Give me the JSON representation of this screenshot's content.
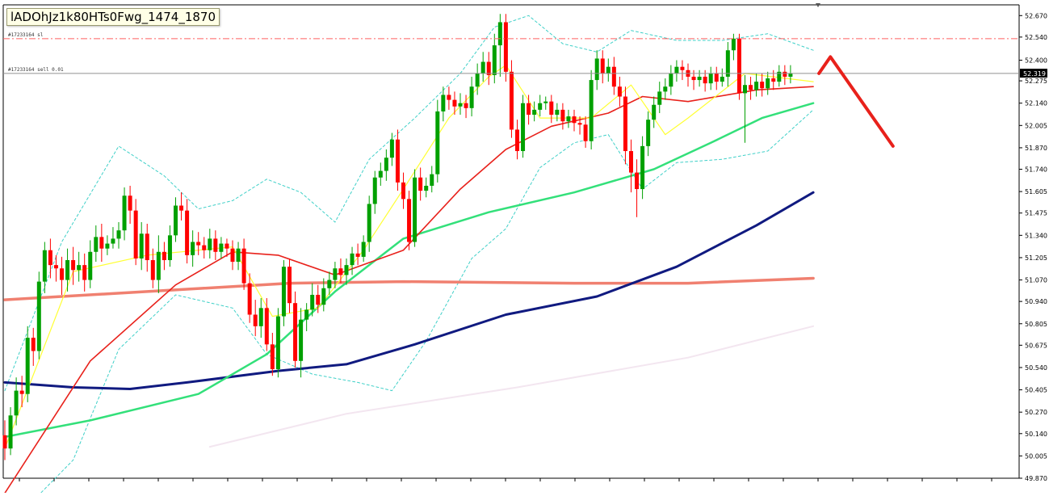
{
  "caption": "lADOhJz1k80HTs0Fwg_1474_1870",
  "orders": {
    "sl_label": "#17233164 sl",
    "sell_label": "#17233164 sell 0.01",
    "sl_price": 52.53,
    "sell_price": 52.32
  },
  "colors": {
    "bull": "#00a000",
    "bear": "#ff0000",
    "sma_yellow": "#ffff33",
    "ma_red": "#e8211b",
    "ma_green": "#33e07a",
    "ma_navy": "#101a80",
    "ma_salmon": "#f08070",
    "bb_cyan": "#3fd0c8",
    "sl_line": "#ff6060",
    "forecast": "#e8211b"
  },
  "chart_data": {
    "type": "candlestick",
    "yaxis_ticks": [
      "52.670",
      "52.540",
      "52.400",
      "52.275",
      "52.140",
      "52.005",
      "51.870",
      "51.740",
      "51.605",
      "51.475",
      "51.340",
      "51.205",
      "51.070",
      "50.940",
      "50.805",
      "50.675",
      "50.540",
      "50.405",
      "50.270",
      "50.140",
      "50.005",
      "49.870"
    ],
    "ylim": [
      49.87,
      52.735
    ],
    "current_price": "52.319",
    "candles": [
      [
        50.13,
        50.05,
        50.22,
        49.98
      ],
      [
        50.05,
        50.25,
        50.3,
        50.01
      ],
      [
        50.25,
        50.4,
        50.48,
        50.19
      ],
      [
        50.4,
        50.38,
        50.49,
        50.3
      ],
      [
        50.38,
        50.72,
        50.79,
        50.33
      ],
      [
        50.72,
        50.64,
        50.78,
        50.55
      ],
      [
        50.64,
        51.06,
        51.12,
        50.59
      ],
      [
        51.06,
        51.25,
        51.3,
        50.99
      ],
      [
        51.25,
        51.16,
        51.32,
        51.08
      ],
      [
        51.16,
        51.14,
        51.22,
        51.06
      ],
      [
        51.14,
        51.07,
        51.21,
        50.98
      ],
      [
        51.07,
        51.19,
        51.26,
        51.0
      ],
      [
        51.19,
        51.13,
        51.27,
        51.04
      ],
      [
        51.13,
        51.16,
        51.24,
        51.06
      ],
      [
        51.16,
        51.07,
        51.23,
        51.0
      ],
      [
        51.07,
        51.24,
        51.31,
        51.02
      ],
      [
        51.24,
        51.33,
        51.4,
        51.18
      ],
      [
        51.33,
        51.26,
        51.41,
        51.18
      ],
      [
        51.26,
        51.29,
        51.34,
        51.22
      ],
      [
        51.29,
        51.32,
        51.39,
        51.26
      ],
      [
        51.32,
        51.37,
        51.42,
        51.26
      ],
      [
        51.37,
        51.58,
        51.63,
        51.31
      ],
      [
        51.58,
        51.49,
        51.64,
        51.41
      ],
      [
        51.49,
        51.2,
        51.56,
        51.16
      ],
      [
        51.2,
        51.35,
        51.42,
        51.13
      ],
      [
        51.35,
        51.19,
        51.41,
        51.12
      ],
      [
        51.19,
        51.07,
        51.26,
        51.02
      ],
      [
        51.07,
        51.24,
        51.34,
        50.99
      ],
      [
        51.24,
        51.19,
        51.3,
        51.13
      ],
      [
        51.19,
        51.34,
        51.4,
        51.15
      ],
      [
        51.34,
        51.52,
        51.57,
        51.3
      ],
      [
        51.52,
        51.49,
        51.6,
        51.43
      ],
      [
        51.49,
        51.22,
        51.56,
        51.17
      ],
      [
        51.22,
        51.3,
        51.37,
        51.15
      ],
      [
        51.3,
        51.28,
        51.36,
        51.22
      ],
      [
        51.28,
        51.25,
        51.33,
        51.2
      ],
      [
        51.25,
        51.32,
        51.38,
        51.2
      ],
      [
        51.32,
        51.24,
        51.37,
        51.19
      ],
      [
        51.24,
        51.29,
        51.33,
        51.2
      ],
      [
        51.29,
        51.26,
        51.32,
        51.21
      ],
      [
        51.26,
        51.18,
        51.31,
        51.13
      ],
      [
        51.18,
        51.26,
        51.3,
        51.13
      ],
      [
        51.26,
        51.05,
        51.32,
        51.01
      ],
      [
        51.05,
        50.86,
        51.11,
        50.81
      ],
      [
        50.86,
        50.79,
        50.95,
        50.73
      ],
      [
        50.79,
        50.9,
        50.96,
        50.72
      ],
      [
        50.9,
        50.68,
        50.96,
        50.64
      ],
      [
        50.68,
        50.53,
        50.75,
        50.49
      ],
      [
        50.53,
        50.85,
        50.9,
        50.48
      ],
      [
        50.85,
        51.15,
        51.19,
        50.79
      ],
      [
        51.15,
        50.93,
        51.2,
        50.87
      ],
      [
        50.93,
        50.58,
        51.0,
        50.54
      ],
      [
        50.58,
        50.83,
        50.9,
        50.48
      ],
      [
        50.83,
        50.89,
        50.93,
        50.76
      ],
      [
        50.89,
        50.98,
        51.05,
        50.85
      ],
      [
        50.98,
        50.92,
        51.04,
        50.87
      ],
      [
        50.92,
        51.02,
        51.08,
        50.88
      ],
      [
        51.02,
        51.07,
        51.12,
        50.98
      ],
      [
        51.07,
        51.14,
        51.18,
        51.02
      ],
      [
        51.14,
        51.1,
        51.2,
        51.05
      ],
      [
        51.1,
        51.16,
        51.2,
        51.04
      ],
      [
        51.16,
        51.23,
        51.27,
        51.1
      ],
      [
        51.23,
        51.21,
        51.29,
        51.16
      ],
      [
        51.21,
        51.3,
        51.34,
        51.18
      ],
      [
        51.3,
        51.53,
        51.58,
        51.24
      ],
      [
        51.53,
        51.69,
        51.73,
        51.47
      ],
      [
        51.69,
        51.73,
        51.78,
        51.64
      ],
      [
        51.73,
        51.81,
        51.86,
        51.67
      ],
      [
        51.81,
        51.92,
        51.96,
        51.76
      ],
      [
        51.92,
        51.66,
        51.98,
        51.61
      ],
      [
        51.66,
        51.56,
        51.72,
        51.5
      ],
      [
        51.56,
        51.3,
        51.61,
        51.25
      ],
      [
        51.3,
        51.69,
        51.74,
        51.27
      ],
      [
        51.69,
        51.61,
        51.75,
        51.55
      ],
      [
        51.61,
        51.64,
        51.69,
        51.57
      ],
      [
        51.64,
        51.71,
        51.76,
        51.6
      ],
      [
        51.71,
        52.09,
        52.16,
        51.66
      ],
      [
        52.09,
        52.19,
        52.24,
        52.03
      ],
      [
        52.19,
        52.16,
        52.24,
        52.1
      ],
      [
        52.16,
        52.12,
        52.21,
        52.07
      ],
      [
        52.12,
        52.14,
        52.2,
        52.07
      ],
      [
        52.14,
        52.11,
        52.19,
        52.05
      ],
      [
        52.11,
        52.24,
        52.3,
        52.06
      ],
      [
        52.24,
        52.32,
        52.38,
        52.19
      ],
      [
        52.32,
        52.39,
        52.45,
        52.27
      ],
      [
        52.39,
        52.31,
        52.45,
        52.25
      ],
      [
        52.31,
        52.49,
        52.56,
        52.26
      ],
      [
        52.49,
        52.63,
        52.68,
        52.3
      ],
      [
        52.63,
        52.33,
        52.68,
        52.27
      ],
      [
        52.33,
        51.98,
        52.4,
        51.93
      ],
      [
        51.98,
        51.85,
        52.04,
        51.8
      ],
      [
        51.85,
        52.14,
        52.19,
        51.81
      ],
      [
        52.14,
        52.07,
        52.19,
        52.01
      ],
      [
        52.07,
        52.1,
        52.15,
        52.03
      ],
      [
        52.1,
        52.14,
        52.19,
        52.06
      ],
      [
        52.14,
        52.15,
        52.18,
        52.1
      ],
      [
        52.15,
        52.07,
        52.19,
        52.02
      ],
      [
        52.07,
        52.1,
        52.14,
        52.03
      ],
      [
        52.1,
        52.03,
        52.14,
        51.98
      ],
      [
        52.03,
        52.06,
        52.1,
        51.99
      ],
      [
        52.06,
        52.02,
        52.1,
        51.97
      ],
      [
        52.02,
        52.01,
        52.06,
        51.95
      ],
      [
        52.01,
        51.91,
        52.06,
        51.87
      ],
      [
        51.91,
        52.28,
        52.34,
        51.86
      ],
      [
        52.28,
        52.41,
        52.46,
        52.22
      ],
      [
        52.41,
        52.32,
        52.46,
        52.26
      ],
      [
        52.32,
        52.36,
        52.41,
        52.27
      ],
      [
        52.36,
        52.24,
        52.42,
        52.19
      ],
      [
        52.24,
        52.18,
        52.3,
        52.12
      ],
      [
        52.18,
        51.85,
        52.24,
        51.77
      ],
      [
        51.85,
        51.72,
        51.92,
        51.6
      ],
      [
        51.72,
        51.62,
        51.8,
        51.45
      ],
      [
        51.62,
        51.88,
        51.94,
        51.56
      ],
      [
        51.88,
        52.04,
        52.09,
        51.82
      ],
      [
        52.04,
        52.13,
        52.18,
        51.99
      ],
      [
        52.13,
        52.21,
        52.27,
        52.08
      ],
      [
        52.21,
        52.24,
        52.29,
        52.16
      ],
      [
        52.24,
        52.32,
        52.37,
        52.19
      ],
      [
        52.32,
        52.36,
        52.4,
        52.27
      ],
      [
        52.36,
        52.34,
        52.4,
        52.28
      ],
      [
        52.34,
        52.3,
        52.38,
        52.24
      ],
      [
        52.3,
        52.28,
        52.34,
        52.22
      ],
      [
        52.28,
        52.3,
        52.34,
        52.24
      ],
      [
        52.3,
        52.26,
        52.34,
        52.21
      ],
      [
        52.26,
        52.32,
        52.36,
        52.22
      ],
      [
        52.32,
        52.27,
        52.36,
        52.22
      ],
      [
        52.27,
        52.3,
        52.35,
        52.24
      ],
      [
        52.3,
        52.46,
        52.51,
        52.24
      ],
      [
        52.46,
        52.53,
        52.56,
        52.4
      ],
      [
        52.53,
        52.2,
        52.56,
        52.16
      ],
      [
        52.2,
        52.25,
        52.31,
        51.9
      ],
      [
        52.25,
        52.22,
        52.3,
        52.16
      ],
      [
        52.22,
        52.27,
        52.32,
        52.18
      ],
      [
        52.27,
        52.23,
        52.32,
        52.18
      ],
      [
        52.23,
        52.29,
        52.33,
        52.19
      ],
      [
        52.29,
        52.27,
        52.34,
        52.22
      ],
      [
        52.27,
        52.33,
        52.37,
        52.24
      ],
      [
        52.33,
        52.3,
        52.37,
        52.25
      ],
      [
        52.3,
        52.32,
        52.37,
        52.26
      ]
    ],
    "indicators": {
      "sma_fast_yellow": [
        [
          0,
          50.05
        ],
        [
          12,
          51.12
        ],
        [
          25,
          51.22
        ],
        [
          40,
          51.27
        ],
        [
          47,
          50.85
        ],
        [
          55,
          50.9
        ],
        [
          63,
          51.25
        ],
        [
          70,
          51.62
        ],
        [
          78,
          52.05
        ],
        [
          85,
          52.3
        ],
        [
          88,
          52.37
        ],
        [
          94,
          52.05
        ],
        [
          103,
          52.05
        ],
        [
          110,
          52.25
        ],
        [
          116,
          51.95
        ],
        [
          120,
          52.05
        ],
        [
          130,
          52.32
        ],
        [
          142,
          52.27
        ]
      ],
      "ma_red": [
        [
          0,
          49.78
        ],
        [
          15,
          50.58
        ],
        [
          30,
          51.04
        ],
        [
          40,
          51.24
        ],
        [
          48,
          51.22
        ],
        [
          58,
          51.1
        ],
        [
          70,
          51.25
        ],
        [
          80,
          51.62
        ],
        [
          88,
          51.86
        ],
        [
          96,
          52.0
        ],
        [
          106,
          52.08
        ],
        [
          112,
          52.18
        ],
        [
          120,
          52.15
        ],
        [
          132,
          52.22
        ],
        [
          142,
          52.24
        ]
      ],
      "ma_green": [
        [
          0,
          50.12
        ],
        [
          15,
          50.22
        ],
        [
          34,
          50.38
        ],
        [
          46,
          50.62
        ],
        [
          58,
          51.0
        ],
        [
          70,
          51.32
        ],
        [
          85,
          51.48
        ],
        [
          100,
          51.6
        ],
        [
          114,
          51.74
        ],
        [
          124,
          51.9
        ],
        [
          133,
          52.05
        ],
        [
          142,
          52.14
        ]
      ],
      "ma_navy": [
        [
          0,
          50.45
        ],
        [
          12,
          50.42
        ],
        [
          22,
          50.41
        ],
        [
          32,
          50.45
        ],
        [
          48,
          50.52
        ],
        [
          60,
          50.56
        ],
        [
          72,
          50.68
        ],
        [
          88,
          50.86
        ],
        [
          104,
          50.97
        ],
        [
          118,
          51.15
        ],
        [
          132,
          51.4
        ],
        [
          142,
          51.6
        ]
      ],
      "ma_salmon": [
        [
          0,
          50.95
        ],
        [
          25,
          51.0
        ],
        [
          50,
          51.05
        ],
        [
          70,
          51.06
        ],
        [
          100,
          51.05
        ],
        [
          120,
          51.05
        ],
        [
          142,
          51.08
        ]
      ],
      "ma_ghost": [
        [
          36,
          50.06
        ],
        [
          60,
          50.26
        ],
        [
          90,
          50.42
        ],
        [
          120,
          50.6
        ],
        [
          142,
          50.79
        ]
      ],
      "bb_upper": [
        [
          0,
          50.4
        ],
        [
          10,
          51.3
        ],
        [
          20,
          51.88
        ],
        [
          28,
          51.7
        ],
        [
          34,
          51.5
        ],
        [
          40,
          51.55
        ],
        [
          46,
          51.68
        ],
        [
          52,
          51.6
        ],
        [
          58,
          51.42
        ],
        [
          64,
          51.8
        ],
        [
          72,
          52.05
        ],
        [
          80,
          52.32
        ],
        [
          86,
          52.6
        ],
        [
          92,
          52.67
        ],
        [
          98,
          52.5
        ],
        [
          104,
          52.45
        ],
        [
          110,
          52.58
        ],
        [
          118,
          52.52
        ],
        [
          126,
          52.52
        ],
        [
          134,
          52.56
        ],
        [
          142,
          52.46
        ]
      ],
      "bb_lower": [
        [
          4,
          49.7
        ],
        [
          12,
          49.98
        ],
        [
          20,
          50.65
        ],
        [
          30,
          50.98
        ],
        [
          40,
          50.9
        ],
        [
          46,
          50.62
        ],
        [
          54,
          50.5
        ],
        [
          62,
          50.45
        ],
        [
          68,
          50.4
        ],
        [
          74,
          50.7
        ],
        [
          82,
          51.2
        ],
        [
          88,
          51.38
        ],
        [
          94,
          51.75
        ],
        [
          100,
          51.9
        ],
        [
          106,
          51.95
        ],
        [
          112,
          51.62
        ],
        [
          118,
          51.78
        ],
        [
          126,
          51.8
        ],
        [
          134,
          51.85
        ],
        [
          142,
          52.1
        ]
      ]
    },
    "forecast_line": [
      [
        143,
        52.32
      ],
      [
        145,
        52.42
      ],
      [
        156,
        51.88
      ]
    ]
  }
}
